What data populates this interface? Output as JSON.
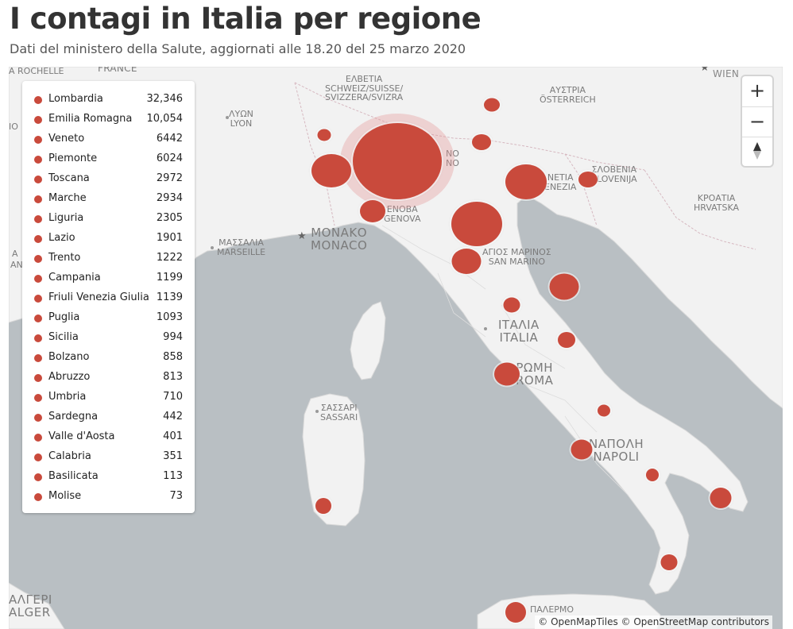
{
  "header": {
    "title": "I contagi in Italia per regione",
    "subtitle": "Dati del ministero della Salute, aggiornati alle 18.20 del 25 marzo 2020"
  },
  "legend": {
    "items": [
      {
        "name": "Lombardia",
        "value": "32,346"
      },
      {
        "name": "Emilia Romagna",
        "value": "10,054"
      },
      {
        "name": "Veneto",
        "value": "6442"
      },
      {
        "name": "Piemonte",
        "value": "6024"
      },
      {
        "name": "Toscana",
        "value": "2972"
      },
      {
        "name": "Marche",
        "value": "2934"
      },
      {
        "name": "Liguria",
        "value": "2305"
      },
      {
        "name": "Lazio",
        "value": "1901"
      },
      {
        "name": "Trento",
        "value": "1222"
      },
      {
        "name": "Campania",
        "value": "1199"
      },
      {
        "name": "Friuli Venezia Giulia",
        "value": "1139"
      },
      {
        "name": "Puglia",
        "value": "1093"
      },
      {
        "name": "Sicilia",
        "value": "994"
      },
      {
        "name": "Bolzano",
        "value": "858"
      },
      {
        "name": "Abruzzo",
        "value": "813"
      },
      {
        "name": "Umbria",
        "value": "710"
      },
      {
        "name": "Sardegna",
        "value": "442"
      },
      {
        "name": "Valle d'Aosta",
        "value": "401"
      },
      {
        "name": "Calabria",
        "value": "351"
      },
      {
        "name": "Basilicata",
        "value": "113"
      },
      {
        "name": "Molise",
        "value": "73"
      }
    ]
  },
  "map_labels": {
    "rochelle": "A ROCHELLE",
    "france": "FRANCE",
    "switzerland_1": "ΕΛΒΕΤΙΑ",
    "switzerland_2": "SCHWEIZ/SUISSE/",
    "switzerland_3": "SVIZZERA/SVIZRA",
    "austria_1": "ΑΥΣΤΡΙΑ",
    "austria_2": "ÖSTERREICH",
    "wien": "WIEN",
    "lyon_1": "ΛΥΩΝ",
    "lyon_2": "LYON",
    "milano_1": "NO",
    "milano_2": "NO",
    "venezia_1": "NETIA",
    "venezia_2": "ENEZIA",
    "slovenia_1": "ΣΛΟΒΕΝΙΑ",
    "slovenia_2": "SLOVENIJA",
    "croatia_1": "ΚΡΟΑΤΙΑ",
    "croatia_2": "HRVATSKA",
    "genova_1": "ΕΝΟΒΑ",
    "genova_2": "GENOVA",
    "marseille_1": "ΜΑΣΣΑΛΙΑ",
    "marseille_2": "MARSEILLE",
    "monaco_1": "ΜΟΝΑΚΟ",
    "monaco_2": "MONACO",
    "sanmarino_1": "ΑΓΙΟΣ ΜΑΡΙΝΟΣ",
    "sanmarino_2": "SAN MARINO",
    "italia_1": "ΙΤΑΛΙΑ",
    "italia_2": "ITALIA",
    "roma_1": "ΡΩΜΗ",
    "roma_2": "ROMA",
    "sassari_1": "ΣΑΣΣΑΡΙ",
    "sassari_2": "SASSARI",
    "napoli_1": "ΝΑΠΟΛΗ",
    "napoli_2": "NAPOLI",
    "palermo": "ΠΑΛΕΡΜΟ",
    "alger_1": "ΑΛΓΕΡΙ",
    "alger_2": "ALGER",
    "left_1": "ΙΟ",
    "left_2": "A",
    "left_3": "AN"
  },
  "bubbles": [
    {
      "region": "Lombardia",
      "value": 32346
    },
    {
      "region": "Emilia Romagna",
      "value": 10054
    },
    {
      "region": "Veneto",
      "value": 6442
    },
    {
      "region": "Piemonte",
      "value": 6024
    },
    {
      "region": "Toscana",
      "value": 2972
    },
    {
      "region": "Marche",
      "value": 2934
    },
    {
      "region": "Liguria",
      "value": 2305
    },
    {
      "region": "Lazio",
      "value": 1901
    },
    {
      "region": "Trento",
      "value": 1222
    },
    {
      "region": "Campania",
      "value": 1199
    },
    {
      "region": "Friuli Venezia Giulia",
      "value": 1139
    },
    {
      "region": "Puglia",
      "value": 1093
    },
    {
      "region": "Sicilia",
      "value": 994
    },
    {
      "region": "Bolzano",
      "value": 858
    },
    {
      "region": "Abruzzo",
      "value": 813
    },
    {
      "region": "Umbria",
      "value": 710
    },
    {
      "region": "Sardegna",
      "value": 442
    },
    {
      "region": "Valle d'Aosta",
      "value": 401
    },
    {
      "region": "Calabria",
      "value": 351
    },
    {
      "region": "Basilicata",
      "value": 113
    },
    {
      "region": "Molise",
      "value": 73
    }
  ],
  "controls": {
    "zoom_in": "+",
    "zoom_out": "−"
  },
  "attribution": "© OpenMapTiles © OpenStreetMap contributors",
  "colors": {
    "bubble": "#c94a3c",
    "sea": "#b9bfc3",
    "land": "#f2f2f2"
  }
}
